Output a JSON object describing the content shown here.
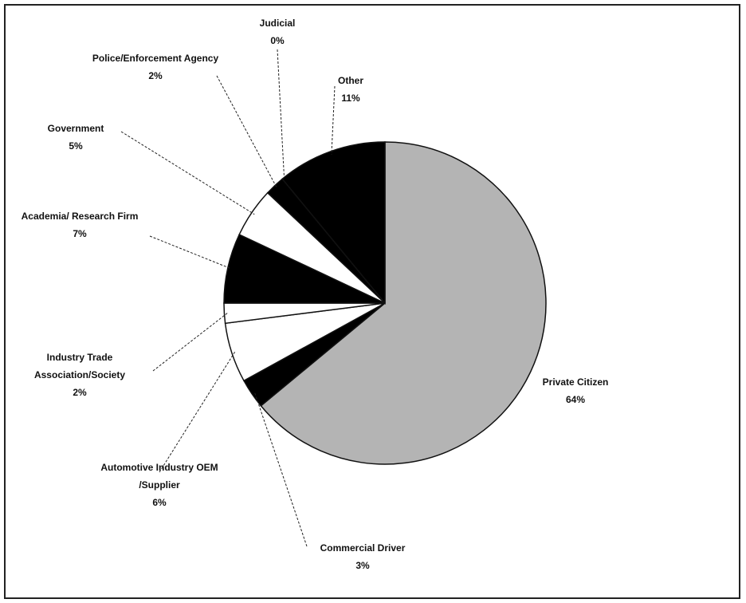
{
  "chart_data": {
    "type": "pie",
    "categories": [
      "Private Citizen",
      "Commercial Driver",
      "Automotive Industry OEM /Supplier",
      "Industry Trade Association/Society",
      "Academia/ Research Firm",
      "Government",
      "Police/Enforcement Agency",
      "Judicial",
      "Other"
    ],
    "values": [
      64,
      3,
      6,
      2,
      7,
      5,
      2,
      0,
      11
    ],
    "value_labels": [
      "64%",
      "3%",
      "6%",
      "2%",
      "7%",
      "5%",
      "2%",
      "0%",
      "11%"
    ],
    "colors": [
      "#b4b4b4",
      "#000000",
      "#ffffff",
      "#ffffff",
      "#000000",
      "#ffffff",
      "#000000",
      "#000000",
      "#000000"
    ]
  }
}
